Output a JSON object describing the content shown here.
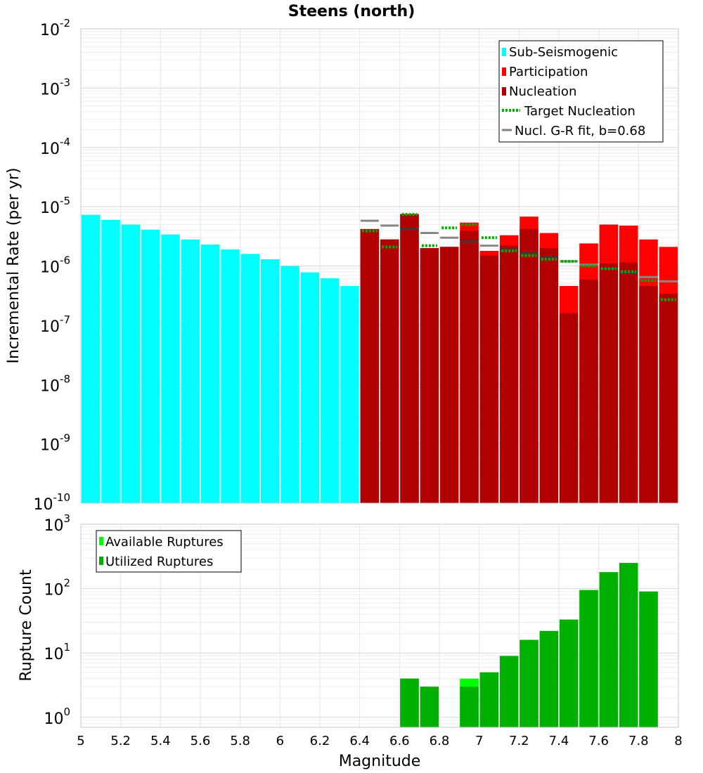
{
  "chart_data": [
    {
      "type": "bar",
      "title": "Steens (north)",
      "xlabel": "Magnitude",
      "ylabel": "Incremental Rate (per yr)",
      "xlim": [
        5,
        8
      ],
      "ylim": [
        1e-10,
        0.01
      ],
      "yscale": "log",
      "grid": true,
      "legend_position": "top-right",
      "xticks": [
        "5",
        "5.2",
        "5.4",
        "5.6",
        "5.8",
        "6",
        "6.2",
        "6.4",
        "6.6",
        "6.8",
        "7",
        "7.2",
        "7.4",
        "7.6",
        "7.8",
        "8"
      ],
      "yticks": [
        {
          "base": "10",
          "exp": "-10"
        },
        {
          "base": "10",
          "exp": "-9"
        },
        {
          "base": "10",
          "exp": "-8"
        },
        {
          "base": "10",
          "exp": "-7"
        },
        {
          "base": "10",
          "exp": "-6"
        },
        {
          "base": "10",
          "exp": "-5"
        },
        {
          "base": "10",
          "exp": "-4"
        },
        {
          "base": "10",
          "exp": "-3"
        },
        {
          "base": "10",
          "exp": "-2"
        }
      ],
      "legend": [
        {
          "label": "Sub-Seismogenic",
          "color": "#00ffff",
          "style": "box"
        },
        {
          "label": "Participation",
          "color": "#ff0000",
          "style": "box"
        },
        {
          "label": "Nucleation",
          "color": "#b00000",
          "style": "box"
        },
        {
          "label": "Target Nucleation",
          "color": "#00b000",
          "style": "dotted"
        },
        {
          "label": "Nucl. G-R fit, b=0.68",
          "color": "#808080",
          "style": "line"
        }
      ],
      "series": [
        {
          "name": "Sub-Seismogenic",
          "color": "#00ffff",
          "x": [
            5.05,
            5.15,
            5.25,
            5.35,
            5.45,
            5.55,
            5.65,
            5.75,
            5.85,
            5.95,
            6.05,
            6.15,
            6.25,
            6.35
          ],
          "values": [
            7.3e-06,
            6e-06,
            5e-06,
            4.1e-06,
            3.4e-06,
            2.8e-06,
            2.3e-06,
            1.9e-06,
            1.6e-06,
            1.3e-06,
            1e-06,
            7.8e-07,
            6.2e-07,
            4.6e-07
          ]
        },
        {
          "name": "Participation",
          "color": "#ff0000",
          "x": [
            6.45,
            6.55,
            6.65,
            6.75,
            6.85,
            6.95,
            7.05,
            7.15,
            7.25,
            7.35,
            7.45,
            7.55,
            7.65,
            7.75,
            7.85,
            7.95
          ],
          "values": [
            4.2e-06,
            2.8e-06,
            7.5e-06,
            2e-06,
            2.1e-06,
            5.4e-06,
            1.8e-06,
            3.3e-06,
            6.8e-06,
            3.6e-06,
            4.6e-07,
            2.4e-06,
            5e-06,
            4.8e-06,
            2.8e-06,
            2.1e-06
          ]
        },
        {
          "name": "Nucleation",
          "color": "#b00000",
          "x": [
            6.45,
            6.55,
            6.65,
            6.75,
            6.85,
            6.95,
            7.05,
            7.15,
            7.25,
            7.35,
            7.45,
            7.55,
            7.65,
            7.75,
            7.85,
            7.95
          ],
          "values": [
            4.2e-06,
            2.8e-06,
            7.5e-06,
            2e-06,
            2.1e-06,
            3.9e-06,
            1.5e-06,
            2.2e-06,
            4.2e-06,
            2e-06,
            1.6e-07,
            5.9e-07,
            1.1e-06,
            1.15e-06,
            4.6e-07,
            3.4e-07
          ]
        },
        {
          "name": "Target Nucleation",
          "color": "#00b000",
          "x": [
            6.45,
            6.55,
            6.65,
            6.75,
            6.85,
            6.95,
            7.05,
            7.15,
            7.25,
            7.35,
            7.45,
            7.55,
            7.65,
            7.75,
            7.85,
            7.95
          ],
          "values": [
            3.9e-06,
            2.1e-06,
            7.4e-06,
            2.2e-06,
            4.4e-06,
            5e-06,
            3e-06,
            1.8e-06,
            1.5e-06,
            1.3e-06,
            1.2e-06,
            1e-06,
            9e-07,
            8e-07,
            5.7e-07,
            2.7e-07
          ]
        },
        {
          "name": "Nucl. G-R fit, b=0.68",
          "color": "#808080",
          "x": [
            6.45,
            6.55,
            6.65,
            6.75,
            6.85,
            6.95,
            7.05,
            7.15,
            7.25,
            7.35,
            7.45,
            7.55,
            7.65,
            7.75,
            7.85,
            7.95
          ],
          "values": [
            5.8e-06,
            4.8e-06,
            4.2e-06,
            3.6e-06,
            3e-06,
            2.6e-06,
            2.2e-06,
            1.9e-06,
            1.65e-06,
            1.4e-06,
            1.2e-06,
            1.05e-06,
            9e-07,
            7.6e-07,
            6.5e-07,
            5.5e-07
          ]
        }
      ]
    },
    {
      "type": "bar",
      "title": "",
      "xlabel": "Magnitude",
      "ylabel": "Rupture Count",
      "xlim": [
        5,
        8
      ],
      "ylim": [
        0.7,
        1000
      ],
      "yscale": "log",
      "grid": true,
      "legend_position": "top-left",
      "yticks": [
        {
          "base": "10",
          "exp": "0"
        },
        {
          "base": "10",
          "exp": "1"
        },
        {
          "base": "10",
          "exp": "2"
        },
        {
          "base": "10",
          "exp": "3"
        }
      ],
      "legend": [
        {
          "label": "Available Ruptures",
          "color": "#00ff00",
          "style": "box"
        },
        {
          "label": "Utilized Ruptures",
          "color": "#00b000",
          "style": "box"
        }
      ],
      "series": [
        {
          "name": "Available Ruptures",
          "color": "#00ff00",
          "x": [
            6.65,
            6.75,
            6.95,
            7.05,
            7.15,
            7.25,
            7.35,
            7.45,
            7.55,
            7.65,
            7.75,
            7.85
          ],
          "values": [
            4,
            3,
            4,
            5,
            9,
            16,
            22,
            33,
            95,
            180,
            250,
            90
          ]
        },
        {
          "name": "Utilized Ruptures",
          "color": "#00b000",
          "x": [
            6.65,
            6.75,
            6.95,
            7.05,
            7.15,
            7.25,
            7.35,
            7.45,
            7.55,
            7.65,
            7.75,
            7.85
          ],
          "values": [
            4,
            3,
            3,
            5,
            9,
            16,
            22,
            33,
            95,
            180,
            250,
            90
          ]
        }
      ]
    }
  ]
}
